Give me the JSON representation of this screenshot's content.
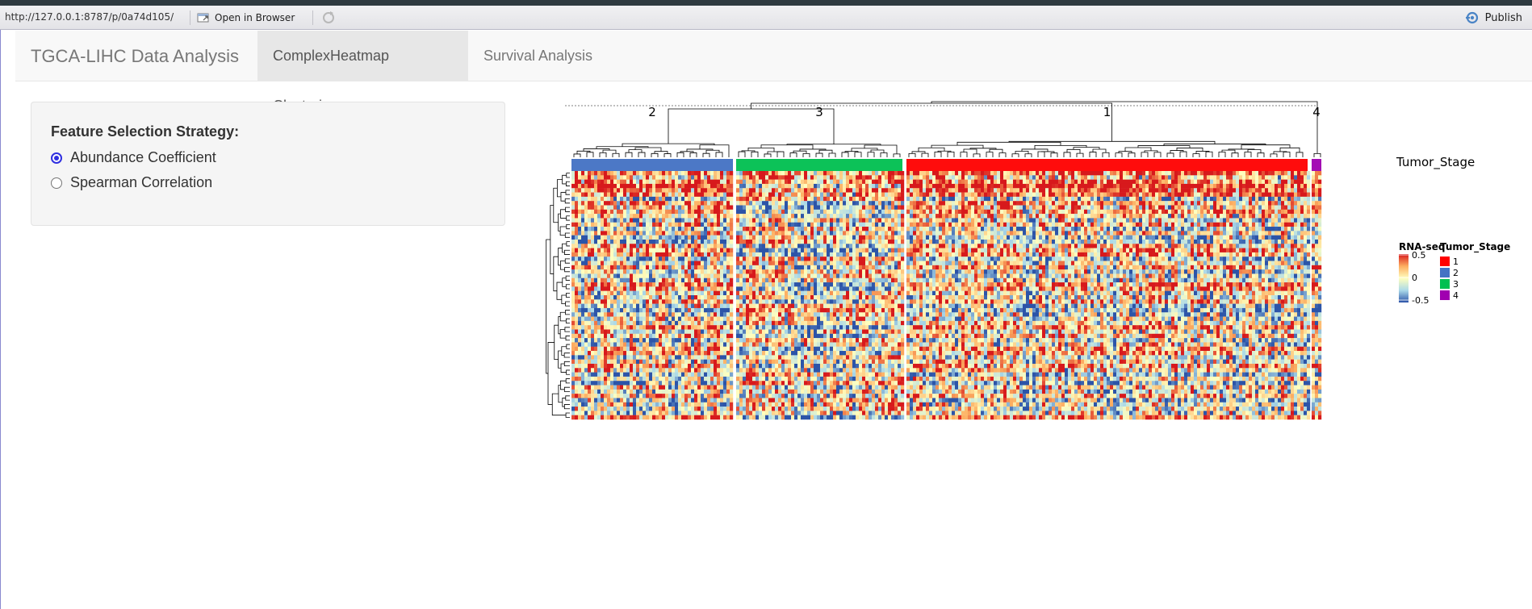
{
  "viewer": {
    "url": "http://127.0.0.1:8787/p/0a74d105/",
    "open_in_browser": "Open in Browser",
    "publish": "Publish",
    "accent": "#4a84c6"
  },
  "navbar": {
    "brand": "TGCA-LIHC Data Analysis",
    "tabs": [
      "ComplexHeatmap Clustering",
      "Survival Analysis"
    ],
    "active_tab": "ComplexHeatmap Clustering"
  },
  "sidebar": {
    "control_label": "Feature Selection Strategy:",
    "options": [
      "Abundance Coefficient",
      "Spearman Correlation"
    ],
    "selected": "Abundance Coefficient",
    "radio_color": "#2f2fe0"
  },
  "chart_data": {
    "type": "heatmap",
    "column_groups": [
      {
        "label": "2",
        "tumor_stage": "2"
      },
      {
        "label": "3",
        "tumor_stage": "3"
      },
      {
        "label": "1",
        "tumor_stage": "1"
      },
      {
        "label": "4",
        "tumor_stage": "4"
      }
    ],
    "annotation": {
      "name": "Tumor_Stage",
      "levels": [
        "1",
        "2",
        "3",
        "4"
      ],
      "colors": {
        "1": "#ff0000",
        "2": "#4472c4",
        "3": "#00c050",
        "4": "#a000b0"
      }
    },
    "color_scale": {
      "name": "RNA-seq",
      "breaks": [
        0.5,
        0,
        -0.5
      ],
      "tick_labels": [
        "0.5",
        "0",
        "-0.5"
      ],
      "colors": [
        "#d7191c",
        "#fdae61",
        "#ffffbf",
        "#abd9e9",
        "#2c54a8"
      ]
    },
    "column_dendrogram": true,
    "row_dendrogram": true,
    "legend_position": "right"
  }
}
